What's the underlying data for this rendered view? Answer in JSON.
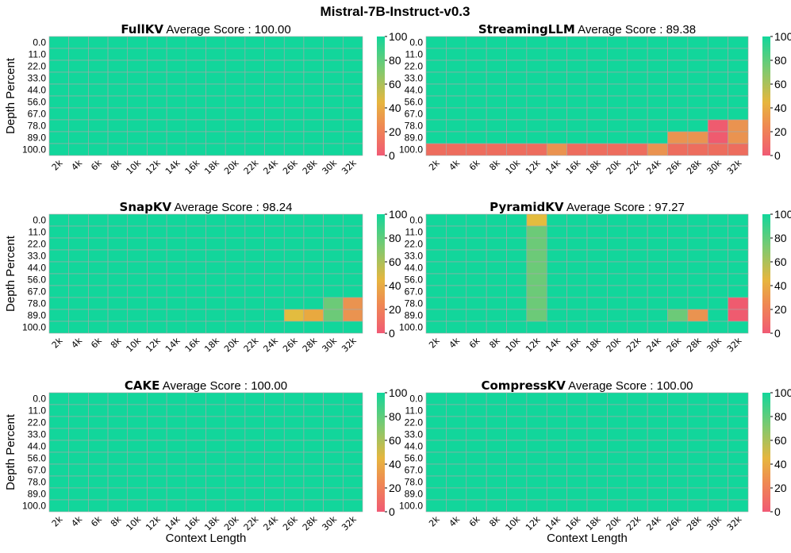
{
  "figure_title": "Mistral-7B-Instruct-v0.3",
  "colors": {
    "high": "#12d69b",
    "mid_green": "#6cca78",
    "yellow": "#e3bc3f",
    "orange_yellow": "#e9a93f",
    "orange": "#ea9350",
    "red": "#ef5b6f",
    "grid": "#a8a8a8"
  },
  "chart_data": [
    {
      "type": "heatmap",
      "method": "FullKV",
      "title_suffix": "Average Score : 100.00",
      "x": [
        "2k",
        "4k",
        "6k",
        "8k",
        "10k",
        "12k",
        "14k",
        "16k",
        "18k",
        "20k",
        "22k",
        "24k",
        "26k",
        "28k",
        "30k",
        "32k"
      ],
      "y": [
        "0.0",
        "11.0",
        "22.0",
        "33.0",
        "44.0",
        "56.0",
        "67.0",
        "78.0",
        "89.0",
        "100.0"
      ],
      "ylabel": "Depth Percent",
      "xlabel": "",
      "zlim": [
        0,
        100
      ],
      "colorbar_ticks": [
        "0",
        "20",
        "40",
        "60",
        "80",
        "100"
      ],
      "default_value": 100,
      "cells": []
    },
    {
      "type": "heatmap",
      "method": "StreamingLLM",
      "title_suffix": "Average Score : 89.38",
      "x": [
        "2k",
        "4k",
        "6k",
        "8k",
        "10k",
        "12k",
        "14k",
        "16k",
        "18k",
        "20k",
        "22k",
        "24k",
        "26k",
        "28k",
        "30k",
        "32k"
      ],
      "y": [
        "0.0",
        "11.0",
        "22.0",
        "33.0",
        "44.0",
        "56.0",
        "67.0",
        "78.0",
        "89.0",
        "100.0"
      ],
      "ylabel": "",
      "xlabel": "",
      "zlim": [
        0,
        100
      ],
      "colorbar_ticks": [
        "0",
        "20",
        "40",
        "60",
        "80",
        "100"
      ],
      "default_value": 100,
      "cells": [
        {
          "x": "2k",
          "y": "100.0",
          "v": 15
        },
        {
          "x": "4k",
          "y": "100.0",
          "v": 15
        },
        {
          "x": "6k",
          "y": "100.0",
          "v": 15
        },
        {
          "x": "8k",
          "y": "100.0",
          "v": 15
        },
        {
          "x": "10k",
          "y": "100.0",
          "v": 15
        },
        {
          "x": "12k",
          "y": "100.0",
          "v": 15
        },
        {
          "x": "14k",
          "y": "100.0",
          "v": 25
        },
        {
          "x": "16k",
          "y": "100.0",
          "v": 15
        },
        {
          "x": "18k",
          "y": "100.0",
          "v": 15
        },
        {
          "x": "20k",
          "y": "100.0",
          "v": 15
        },
        {
          "x": "22k",
          "y": "100.0",
          "v": 15
        },
        {
          "x": "24k",
          "y": "100.0",
          "v": 25
        },
        {
          "x": "26k",
          "y": "100.0",
          "v": 15
        },
        {
          "x": "28k",
          "y": "100.0",
          "v": 15
        },
        {
          "x": "30k",
          "y": "100.0",
          "v": 15
        },
        {
          "x": "32k",
          "y": "100.0",
          "v": 15
        },
        {
          "x": "26k",
          "y": "89.0",
          "v": 30
        },
        {
          "x": "28k",
          "y": "89.0",
          "v": 30
        },
        {
          "x": "30k",
          "y": "89.0",
          "v": 12
        },
        {
          "x": "32k",
          "y": "89.0",
          "v": 22
        },
        {
          "x": "30k",
          "y": "78.0",
          "v": 12
        },
        {
          "x": "32k",
          "y": "78.0",
          "v": 22
        }
      ]
    },
    {
      "type": "heatmap",
      "method": "SnapKV",
      "title_suffix": "Average Score : 98.24",
      "x": [
        "2k",
        "4k",
        "6k",
        "8k",
        "10k",
        "12k",
        "14k",
        "16k",
        "18k",
        "20k",
        "22k",
        "24k",
        "26k",
        "28k",
        "30k",
        "32k"
      ],
      "y": [
        "0.0",
        "11.0",
        "22.0",
        "33.0",
        "44.0",
        "56.0",
        "67.0",
        "78.0",
        "89.0",
        "100.0"
      ],
      "ylabel": "Depth Percent",
      "xlabel": "",
      "zlim": [
        0,
        100
      ],
      "colorbar_ticks": [
        "0",
        "20",
        "40",
        "60",
        "80",
        "100"
      ],
      "default_value": 100,
      "cells": [
        {
          "x": "26k",
          "y": "89.0",
          "v": 42
        },
        {
          "x": "28k",
          "y": "89.0",
          "v": 38
        },
        {
          "x": "30k",
          "y": "78.0",
          "v": 70
        },
        {
          "x": "30k",
          "y": "89.0",
          "v": 70
        },
        {
          "x": "32k",
          "y": "78.0",
          "v": 20
        },
        {
          "x": "32k",
          "y": "89.0",
          "v": 20
        }
      ]
    },
    {
      "type": "heatmap",
      "method": "PyramidKV",
      "title_suffix": "Average Score : 97.27",
      "x": [
        "2k",
        "4k",
        "6k",
        "8k",
        "10k",
        "12k",
        "14k",
        "16k",
        "18k",
        "20k",
        "22k",
        "24k",
        "26k",
        "28k",
        "30k",
        "32k"
      ],
      "y": [
        "0.0",
        "11.0",
        "22.0",
        "33.0",
        "44.0",
        "56.0",
        "67.0",
        "78.0",
        "89.0",
        "100.0"
      ],
      "ylabel": "",
      "xlabel": "",
      "zlim": [
        0,
        100
      ],
      "colorbar_ticks": [
        "0",
        "20",
        "40",
        "60",
        "80",
        "100"
      ],
      "default_value": 100,
      "cells": [
        {
          "x": "12k",
          "y": "0.0",
          "v": 45
        },
        {
          "x": "12k",
          "y": "11.0",
          "v": 75
        },
        {
          "x": "12k",
          "y": "22.0",
          "v": 75
        },
        {
          "x": "12k",
          "y": "33.0",
          "v": 75
        },
        {
          "x": "12k",
          "y": "44.0",
          "v": 75
        },
        {
          "x": "12k",
          "y": "56.0",
          "v": 75
        },
        {
          "x": "12k",
          "y": "67.0",
          "v": 75
        },
        {
          "x": "12k",
          "y": "78.0",
          "v": 75
        },
        {
          "x": "12k",
          "y": "89.0",
          "v": 75
        },
        {
          "x": "26k",
          "y": "89.0",
          "v": 75
        },
        {
          "x": "28k",
          "y": "89.0",
          "v": 30
        },
        {
          "x": "32k",
          "y": "78.0",
          "v": 12
        },
        {
          "x": "32k",
          "y": "89.0",
          "v": 12
        }
      ]
    },
    {
      "type": "heatmap",
      "method": "CAKE",
      "title_suffix": "Average Score : 100.00",
      "x": [
        "2k",
        "4k",
        "6k",
        "8k",
        "10k",
        "12k",
        "14k",
        "16k",
        "18k",
        "20k",
        "22k",
        "24k",
        "26k",
        "28k",
        "30k",
        "32k"
      ],
      "y": [
        "0.0",
        "11.0",
        "22.0",
        "33.0",
        "44.0",
        "56.0",
        "67.0",
        "78.0",
        "89.0",
        "100.0"
      ],
      "ylabel": "Depth Percent",
      "xlabel": "Context Length",
      "zlim": [
        0,
        100
      ],
      "colorbar_ticks": [
        "0",
        "20",
        "40",
        "60",
        "80",
        "100"
      ],
      "default_value": 100,
      "cells": []
    },
    {
      "type": "heatmap",
      "method": "CompressKV",
      "title_suffix": "Average Score : 100.00",
      "x": [
        "2k",
        "4k",
        "6k",
        "8k",
        "10k",
        "12k",
        "14k",
        "16k",
        "18k",
        "20k",
        "22k",
        "24k",
        "26k",
        "28k",
        "30k",
        "32k"
      ],
      "y": [
        "0.0",
        "11.0",
        "22.0",
        "33.0",
        "44.0",
        "56.0",
        "67.0",
        "78.0",
        "89.0",
        "100.0"
      ],
      "ylabel": "",
      "xlabel": "Context Length",
      "zlim": [
        0,
        100
      ],
      "colorbar_ticks": [
        "0",
        "20",
        "40",
        "60",
        "80",
        "100"
      ],
      "default_value": 100,
      "cells": []
    }
  ]
}
